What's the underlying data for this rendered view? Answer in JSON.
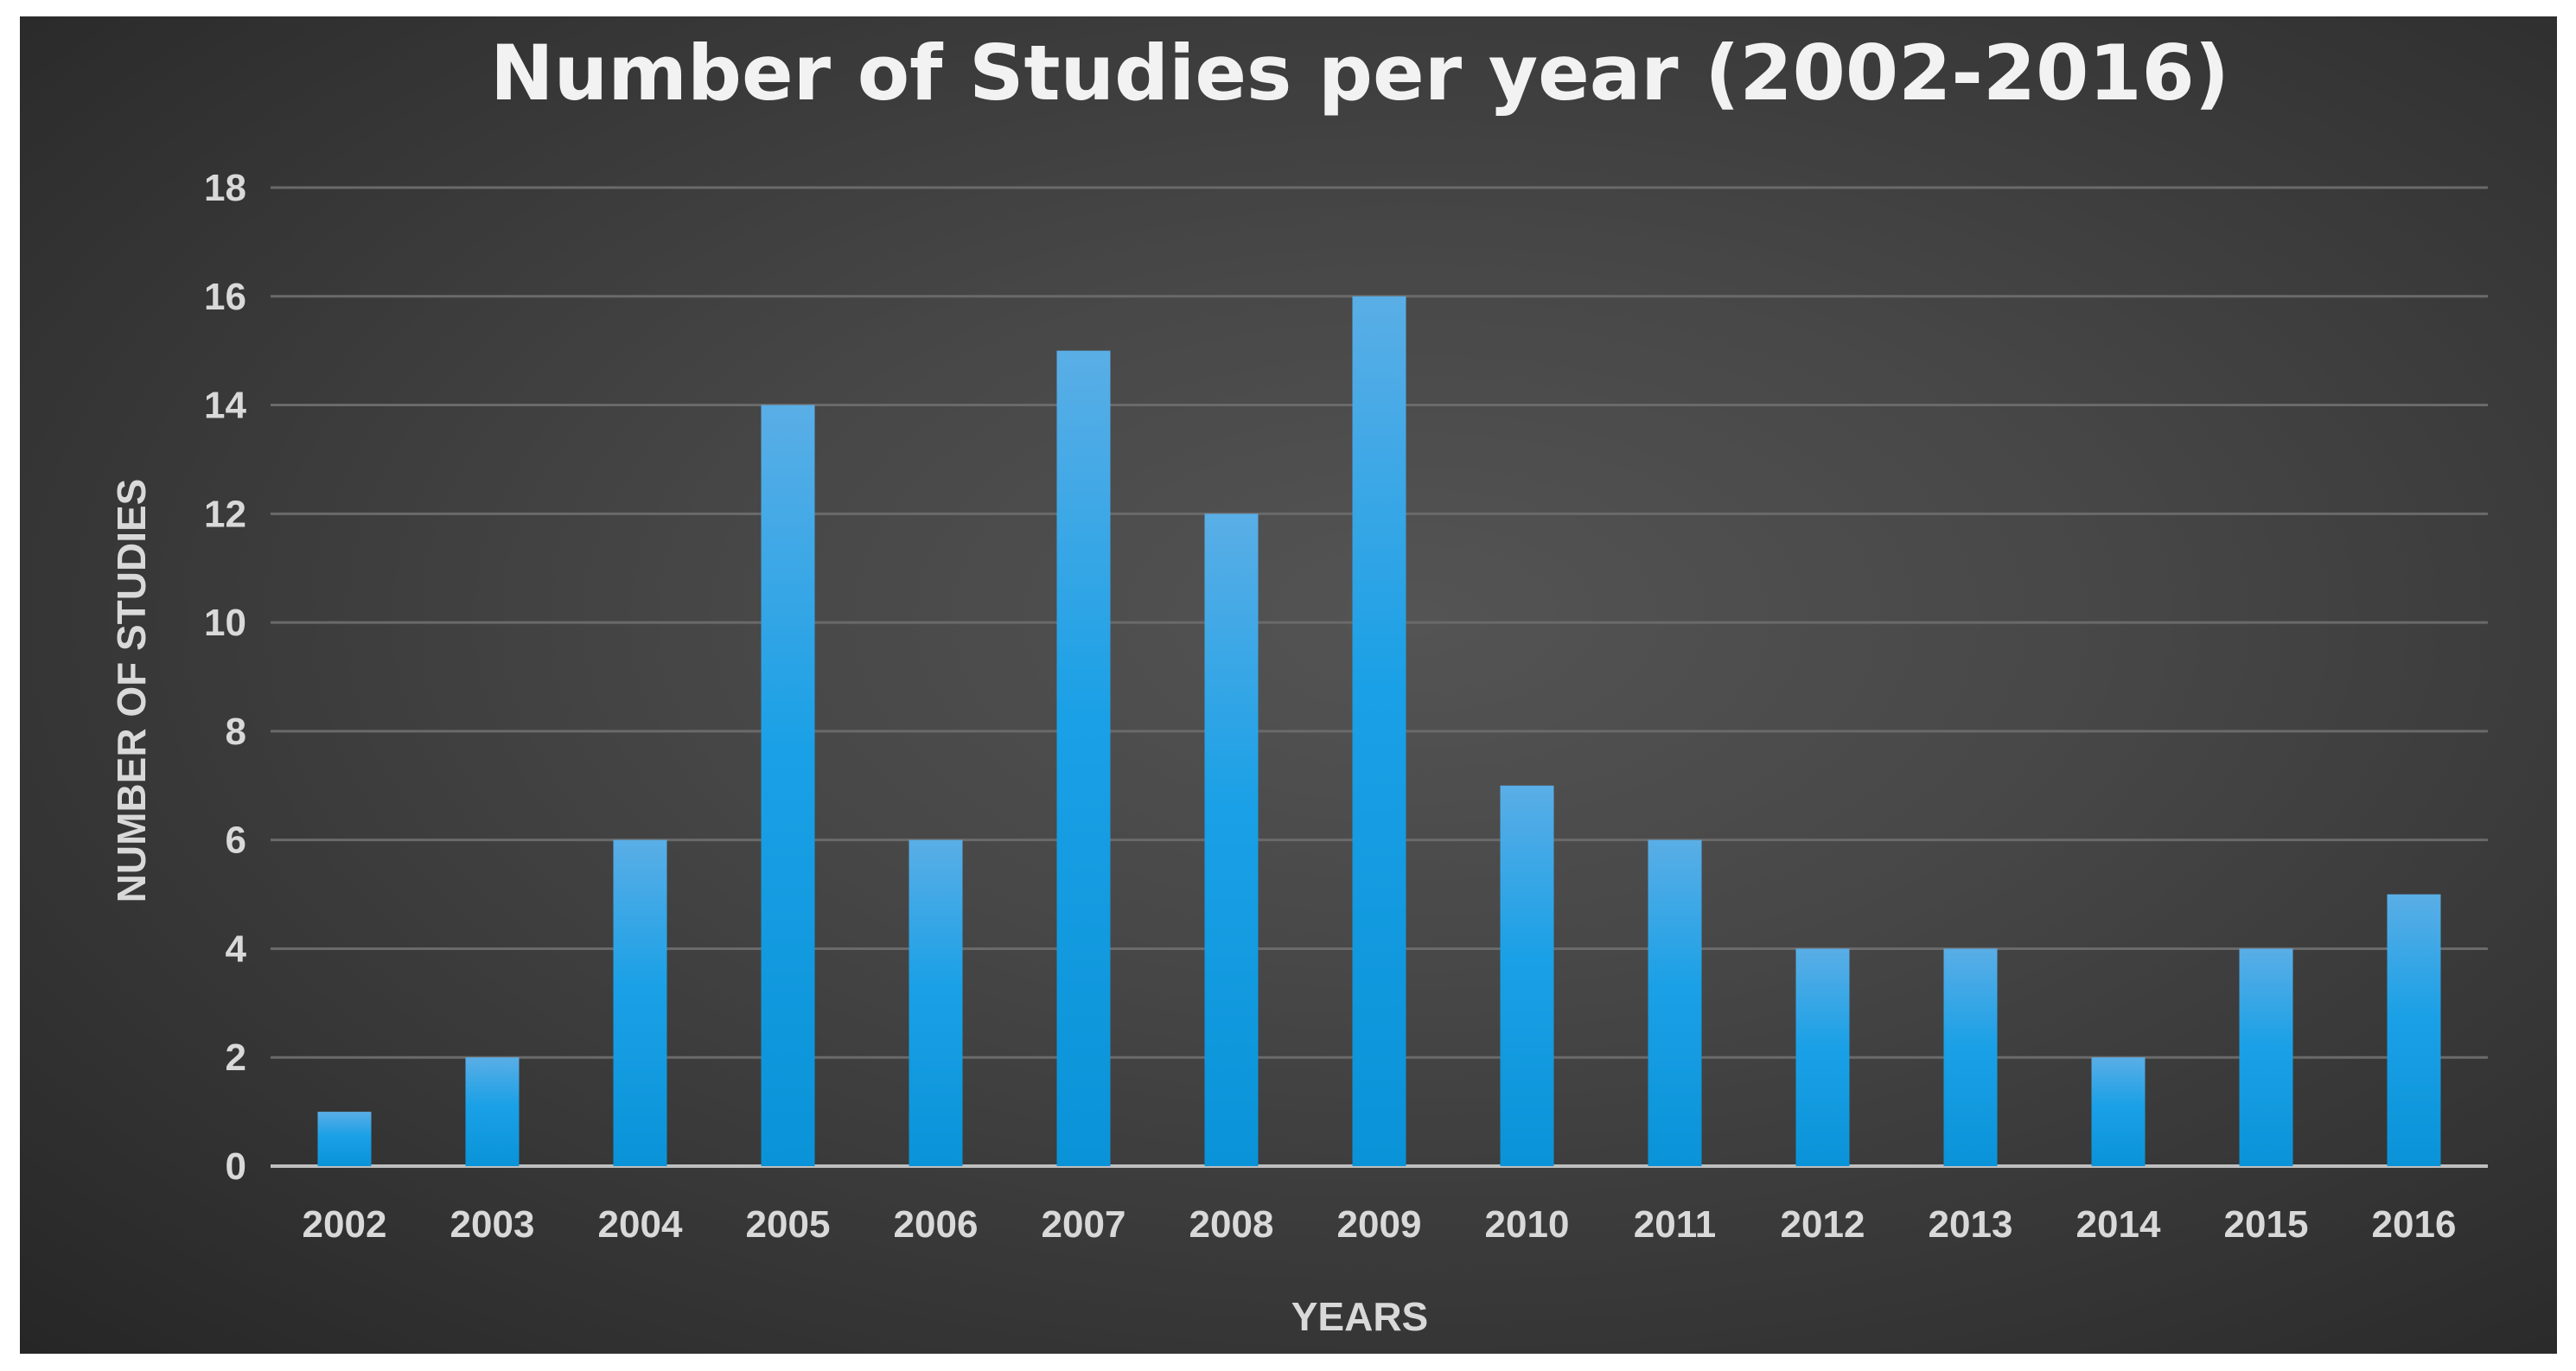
{
  "chart_data": {
    "type": "bar",
    "title": "Number of Studies per year (2002-2016)",
    "xlabel": "YEARS",
    "ylabel": "NUMBER OF STUDIES",
    "categories": [
      "2002",
      "2003",
      "2004",
      "2005",
      "2006",
      "2007",
      "2008",
      "2009",
      "2010",
      "2011",
      "2012",
      "2013",
      "2014",
      "2015",
      "2016"
    ],
    "values": [
      1,
      2,
      6,
      14,
      6,
      15,
      12,
      16,
      7,
      6,
      4,
      4,
      2,
      4,
      5
    ],
    "ylim": [
      0,
      18
    ],
    "yticks": [
      0,
      2,
      4,
      6,
      8,
      10,
      12,
      14,
      16,
      18
    ],
    "grid": true,
    "legend": "none",
    "colors": {
      "bar_top": "#5aaee6",
      "bar_bottom": "#0a93d8",
      "gridline": "#6a6a6a",
      "baseline": "#bfbfbf",
      "text": "#d9d9d9",
      "title": "#f2f2f2"
    }
  }
}
